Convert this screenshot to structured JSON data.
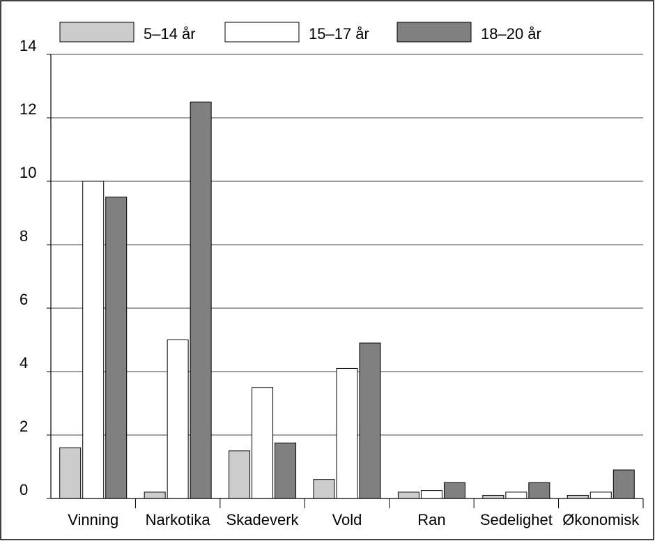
{
  "chart_data": {
    "type": "bar",
    "title": "",
    "xlabel": "",
    "ylabel": "",
    "ylim": [
      0,
      14
    ],
    "yticks": [
      0,
      2,
      4,
      6,
      8,
      10,
      12,
      14
    ],
    "grid": true,
    "legend_position": "top",
    "categories": [
      "Vinning",
      "Narkotika",
      "Skadeverk",
      "Vold",
      "Ran",
      "Sedelighet",
      "Økonomisk"
    ],
    "series": [
      {
        "name": "5–14 år",
        "color": "#cccccc",
        "values": [
          1.6,
          0.2,
          1.5,
          0.6,
          0.2,
          0.1,
          0.1
        ]
      },
      {
        "name": "15–17 år",
        "color": "#ffffff",
        "values": [
          10.0,
          5.0,
          3.5,
          4.1,
          0.25,
          0.2,
          0.2
        ]
      },
      {
        "name": "18–20 år",
        "color": "#808080",
        "values": [
          9.5,
          12.5,
          1.75,
          4.9,
          0.5,
          0.5,
          0.9
        ]
      }
    ]
  }
}
